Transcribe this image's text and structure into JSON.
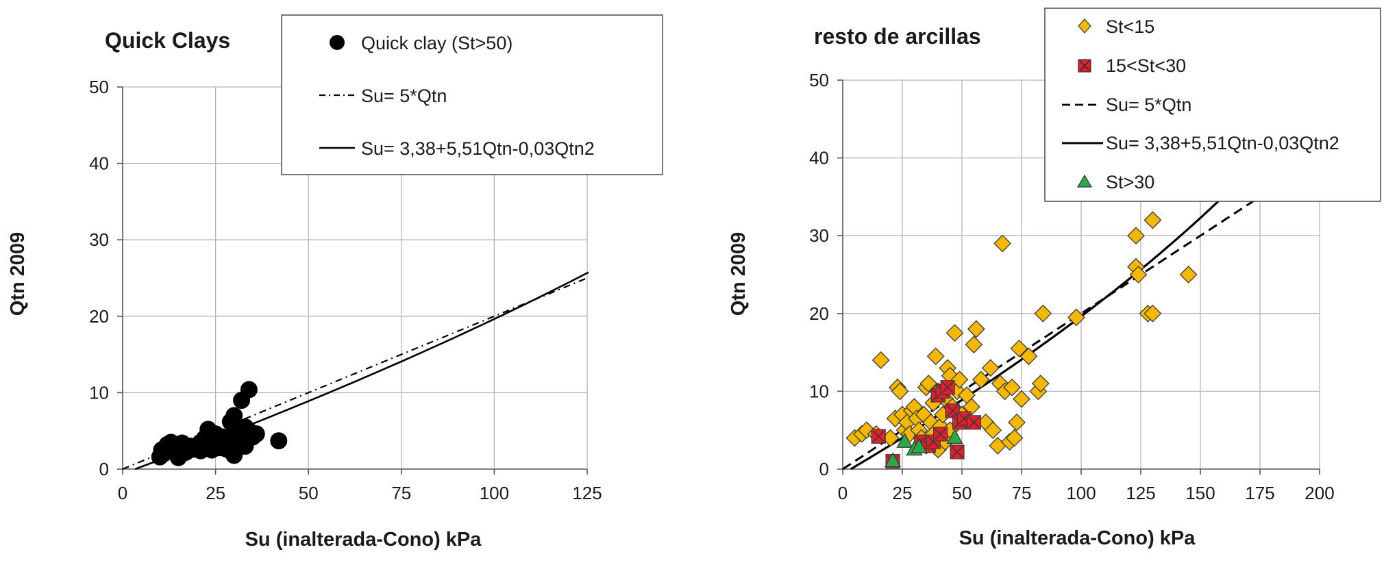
{
  "chart_data": [
    {
      "type": "scatter",
      "title": "Quick Clays",
      "xlabel": "Su (inalterada-Cono) kPa",
      "ylabel": "Qtn 2009",
      "xlim": [
        0,
        125
      ],
      "ylim": [
        0,
        50
      ],
      "x_ticks": [
        "0",
        "25",
        "50",
        "75",
        "100",
        "125"
      ],
      "y_ticks": [
        "0",
        "10",
        "20",
        "30",
        "40",
        "50"
      ],
      "grid": true,
      "legend": "top-right",
      "series": [
        {
          "name": "Quick clay (St>50)",
          "marker": "circle",
          "color": "#000000",
          "points": [
            [
              10,
              1.6
            ],
            [
              10.5,
              2.5
            ],
            [
              11,
              2.0
            ],
            [
              12,
              3.2
            ],
            [
              13,
              3.5
            ],
            [
              14,
              3.0
            ],
            [
              15,
              1.5
            ],
            [
              15,
              2.8
            ],
            [
              16,
              3.4
            ],
            [
              17,
              2.2
            ],
            [
              18,
              3.0
            ],
            [
              19,
              2.6
            ],
            [
              20,
              3.1
            ],
            [
              21,
              3.5
            ],
            [
              21,
              2.4
            ],
            [
              22,
              4.0
            ],
            [
              22,
              3.0
            ],
            [
              23,
              5.2
            ],
            [
              23,
              4.2
            ],
            [
              24,
              2.5
            ],
            [
              24,
              3.4
            ],
            [
              25,
              4.6
            ],
            [
              26,
              3.8
            ],
            [
              26,
              2.8
            ],
            [
              27,
              4.2
            ],
            [
              28,
              3.2
            ],
            [
              28,
              2.6
            ],
            [
              29,
              3.8
            ],
            [
              29,
              6.2
            ],
            [
              30,
              7.0
            ],
            [
              30,
              1.8
            ],
            [
              30,
              5.0
            ],
            [
              31,
              3.6
            ],
            [
              31,
              2.8
            ],
            [
              32,
              4.2
            ],
            [
              32,
              9.0
            ],
            [
              33,
              5.5
            ],
            [
              33,
              3.0
            ],
            [
              34,
              10.4
            ],
            [
              34,
              5.0
            ],
            [
              35,
              4.2
            ],
            [
              36,
              4.6
            ],
            [
              42,
              3.7
            ]
          ]
        },
        {
          "name": "Su= 5*Qtn",
          "style": "dash-dot",
          "color": "#000000",
          "x": [
            0,
            125
          ],
          "y": [
            0,
            25
          ]
        },
        {
          "name": "Su= 3,38+5,51Qtn-0,03Qtn2",
          "style": "solid",
          "color": "#000000",
          "qtn_range": [
            0,
            25.8
          ]
        }
      ]
    },
    {
      "type": "scatter",
      "title": "resto de arcillas",
      "xlabel": "Su (inalterada-Cono) kPa",
      "ylabel": "Qtn 2009",
      "xlim": [
        0,
        200
      ],
      "ylim": [
        0,
        50
      ],
      "x_ticks": [
        "0",
        "25",
        "50",
        "75",
        "100",
        "125",
        "150",
        "175",
        "200"
      ],
      "y_ticks": [
        "0",
        "10",
        "20",
        "30",
        "40",
        "50"
      ],
      "grid": true,
      "legend": "top-right",
      "series": [
        {
          "name": "St<15",
          "marker": "diamond",
          "color": "#f5b800",
          "points": [
            [
              5,
              4.0
            ],
            [
              8,
              4.5
            ],
            [
              10,
              5.0
            ],
            [
              14,
              4.5
            ],
            [
              16,
              14.0
            ],
            [
              20,
              4.0
            ],
            [
              22,
              6.5
            ],
            [
              23,
              10.5
            ],
            [
              24,
              10.0
            ],
            [
              25,
              7.0
            ],
            [
              26,
              5.0
            ],
            [
              27,
              6.0
            ],
            [
              28,
              4.5
            ],
            [
              29,
              7.5
            ],
            [
              30,
              8.0
            ],
            [
              31,
              6.5
            ],
            [
              32,
              5.0
            ],
            [
              33,
              4.0
            ],
            [
              34,
              7.0
            ],
            [
              35,
              10.5
            ],
            [
              35,
              3.0
            ],
            [
              36,
              11.0
            ],
            [
              37,
              6.0
            ],
            [
              38,
              4.5
            ],
            [
              38,
              8.5
            ],
            [
              39,
              14.5
            ],
            [
              40,
              10.0
            ],
            [
              40,
              2.5
            ],
            [
              41,
              5.5
            ],
            [
              42,
              7.0
            ],
            [
              43,
              9.0
            ],
            [
              43,
              3.5
            ],
            [
              44,
              13.0
            ],
            [
              45,
              12.0
            ],
            [
              45,
              5.0
            ],
            [
              46,
              8.0
            ],
            [
              47,
              17.5
            ],
            [
              48,
              10.0
            ],
            [
              49,
              11.5
            ],
            [
              50,
              7.0
            ],
            [
              52,
              9.5
            ],
            [
              54,
              8.0
            ],
            [
              55,
              16.0
            ],
            [
              56,
              18.0
            ],
            [
              58,
              11.5
            ],
            [
              60,
              6.0
            ],
            [
              62,
              13.0
            ],
            [
              63,
              5.0
            ],
            [
              65,
              3.0
            ],
            [
              66,
              11.0
            ],
            [
              67,
              29.0
            ],
            [
              68,
              10.0
            ],
            [
              70,
              3.5
            ],
            [
              71,
              10.5
            ],
            [
              72,
              4.0
            ],
            [
              73,
              6.0
            ],
            [
              74,
              15.5
            ],
            [
              75,
              9.0
            ],
            [
              78,
              14.5
            ],
            [
              82,
              10.0
            ],
            [
              83,
              11.0
            ],
            [
              84,
              20.0
            ],
            [
              98,
              19.5
            ],
            [
              123,
              30.0
            ],
            [
              123,
              26.0
            ],
            [
              124,
              25.0
            ],
            [
              128,
              20.0
            ],
            [
              130,
              20.0
            ],
            [
              130,
              32.0
            ],
            [
              145,
              25.0
            ]
          ]
        },
        {
          "name": "15<St<30",
          "marker": "x-square",
          "color": "#e0202a",
          "points": [
            [
              15,
              4.2
            ],
            [
              21,
              1.0
            ],
            [
              33,
              3.5
            ],
            [
              36,
              3.0
            ],
            [
              38,
              3.5
            ],
            [
              40,
              9.5
            ],
            [
              41,
              4.5
            ],
            [
              42,
              10.0
            ],
            [
              44,
              10.5
            ],
            [
              46,
              7.5
            ],
            [
              48,
              2.2
            ],
            [
              49,
              6.0
            ],
            [
              51,
              6.5
            ],
            [
              55,
              6.0
            ]
          ]
        },
        {
          "name": "Su= 5*Qtn",
          "style": "dashed",
          "color": "#000000",
          "x": [
            0,
            200
          ],
          "y": [
            0,
            40
          ]
        },
        {
          "name": "Su= 3,38+5,51Qtn-0,03Qtn2",
          "style": "solid",
          "color": "#000000",
          "qtn_range": [
            0,
            40.5
          ]
        },
        {
          "name": "St>30",
          "marker": "triangle",
          "color": "#2aa84a",
          "points": [
            [
              21,
              1.0
            ],
            [
              26,
              3.5
            ],
            [
              30,
              2.5
            ],
            [
              32,
              2.8
            ],
            [
              47,
              4.0
            ]
          ]
        }
      ]
    }
  ]
}
